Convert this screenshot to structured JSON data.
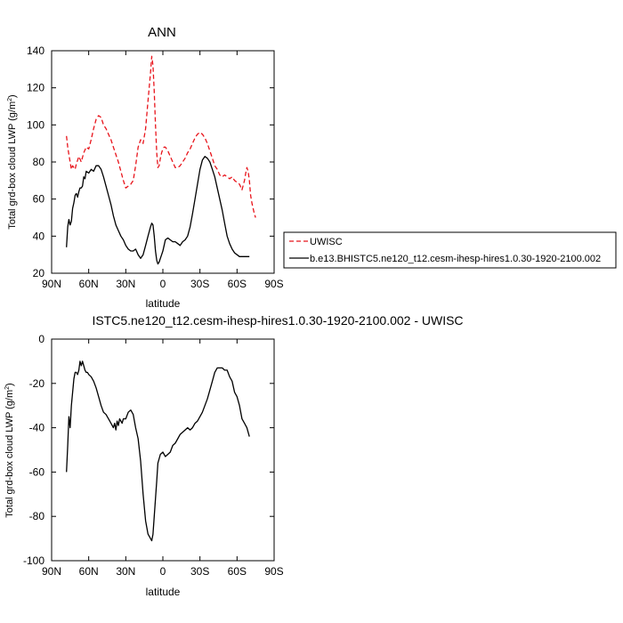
{
  "top_panel": {
    "title": "ANN",
    "ylabel_prefix": "Total grd-box cloud LWP (g/m",
    "ylabel_sup": "2",
    "ylabel_suffix": ")",
    "xlabel": "latitude"
  },
  "bottom_panel": {
    "title": "ISTC5.ne120_t12.cesm-ihesp-hires1.0.30-1920-2100.002 - UWISC",
    "ylabel_prefix": "Total grd-box cloud LWP (g/m",
    "ylabel_sup": "2",
    "ylabel_suffix": ")",
    "xlabel": "latitude"
  },
  "legend": {
    "items": [
      {
        "label": "UWISC",
        "color": "#e8141b",
        "dash": "dashed"
      },
      {
        "label": "b.e13.BHISTC5.ne120_t12.cesm-ihesp-hires1.0.30-1920-2100.002",
        "color": "#000000",
        "dash": "solid"
      }
    ]
  },
  "chart_data": [
    {
      "type": "line",
      "title": "ANN",
      "xlabel": "latitude",
      "ylabel": "Total grd-box cloud LWP (g/m2)",
      "xlim": [
        90,
        -90
      ],
      "ylim": [
        20,
        140
      ],
      "xticks": [
        90,
        60,
        30,
        0,
        -30,
        -60,
        -90
      ],
      "xtick_labels": [
        "90N",
        "60N",
        "30N",
        "0",
        "30S",
        "60S",
        "90S"
      ],
      "yticks": [
        20,
        40,
        60,
        80,
        100,
        120,
        140
      ],
      "series": [
        {
          "name": "UWISC",
          "color": "#e8141b",
          "dash": "dashed",
          "x": [
            78,
            77,
            76,
            75,
            74,
            73,
            72,
            71,
            70,
            68,
            66,
            64,
            62,
            60,
            58,
            56,
            54,
            52,
            50,
            48,
            46,
            44,
            42,
            40,
            38,
            36,
            34,
            32,
            30,
            28,
            26,
            24,
            22,
            20,
            18,
            16,
            14,
            12,
            10,
            9,
            8,
            7,
            6,
            5,
            4,
            3,
            2,
            1,
            0,
            -1,
            -2,
            -4,
            -6,
            -8,
            -10,
            -12,
            -14,
            -16,
            -18,
            -20,
            -22,
            -24,
            -26,
            -28,
            -30,
            -32,
            -34,
            -36,
            -38,
            -40,
            -42,
            -44,
            -46,
            -48,
            -50,
            -52,
            -54,
            -56,
            -58,
            -60,
            -62,
            -64,
            -66,
            -67,
            -68,
            -69,
            -70,
            -71,
            -72,
            -73,
            -74,
            -75
          ],
          "y": [
            94,
            88,
            84,
            80,
            76,
            78,
            77,
            76,
            79,
            83,
            80,
            85,
            88,
            87,
            92,
            98,
            103,
            105,
            104,
            100,
            98,
            95,
            92,
            88,
            84,
            80,
            75,
            70,
            66,
            67,
            68,
            70,
            78,
            88,
            92,
            90,
            98,
            113,
            128,
            137,
            132,
            118,
            100,
            85,
            77,
            78,
            82,
            85,
            87,
            88,
            88,
            86,
            83,
            80,
            77,
            77,
            78,
            80,
            82,
            85,
            87,
            90,
            93,
            95,
            96,
            95,
            93,
            90,
            86,
            82,
            78,
            76,
            73,
            72,
            73,
            72,
            71,
            72,
            70,
            69,
            68,
            65,
            70,
            74,
            77,
            75,
            70,
            62,
            58,
            55,
            52,
            50
          ]
        },
        {
          "name": "b.e13.BHISTC5.ne120_t12.cesm-ihesp-hires1.0.30-1920-2100.002",
          "color": "#000000",
          "dash": "solid",
          "x": [
            78,
            77,
            76,
            75,
            74,
            73,
            72,
            71,
            70,
            69,
            68,
            67,
            66,
            65,
            64,
            63,
            62,
            60,
            58,
            56,
            54,
            52,
            50,
            48,
            46,
            44,
            42,
            40,
            38,
            36,
            34,
            32,
            30,
            28,
            26,
            24,
            22,
            20,
            18,
            16,
            14,
            12,
            10,
            9,
            8,
            7,
            6,
            5,
            4,
            3,
            2,
            1,
            0,
            -1,
            -2,
            -4,
            -6,
            -8,
            -10,
            -12,
            -14,
            -16,
            -18,
            -20,
            -22,
            -24,
            -26,
            -28,
            -30,
            -32,
            -34,
            -36,
            -38,
            -40,
            -42,
            -44,
            -46,
            -48,
            -50,
            -52,
            -54,
            -56,
            -58,
            -60,
            -62,
            -64,
            -66,
            -68,
            -70
          ],
          "y": [
            34,
            45,
            49,
            46,
            48,
            55,
            58,
            62,
            63,
            61,
            64,
            66,
            66,
            67,
            72,
            71,
            75,
            74,
            76,
            75,
            78,
            78,
            76,
            72,
            67,
            62,
            57,
            51,
            46,
            43,
            40,
            38,
            35,
            33,
            32,
            32,
            33,
            30,
            28,
            30,
            35,
            40,
            45,
            47,
            46,
            40,
            32,
            27,
            25,
            26,
            28,
            30,
            32,
            35,
            38,
            39,
            38,
            37,
            37,
            36,
            35,
            37,
            38,
            40,
            45,
            52,
            60,
            68,
            76,
            81,
            83,
            82,
            80,
            76,
            72,
            66,
            60,
            54,
            47,
            40,
            36,
            33,
            31,
            30,
            29,
            29,
            29,
            29,
            29
          ]
        }
      ]
    },
    {
      "type": "line",
      "title": "ISTC5.ne120_t12.cesm-ihesp-hires1.0.30-1920-2100.002 - UWISC",
      "xlabel": "latitude",
      "ylabel": "Total grd-box cloud LWP (g/m2)",
      "xlim": [
        90,
        -90
      ],
      "ylim": [
        -100,
        0
      ],
      "xticks": [
        90,
        60,
        30,
        0,
        -30,
        -60,
        -90
      ],
      "xtick_labels": [
        "90N",
        "60N",
        "30N",
        "0",
        "30S",
        "60S",
        "90S"
      ],
      "yticks": [
        -100,
        -80,
        -60,
        -40,
        -20,
        0
      ],
      "series": [
        {
          "color": "#000000",
          "dash": "solid",
          "x": [
            78,
            77,
            76,
            75,
            74,
            73,
            72,
            71,
            70,
            69,
            68,
            67,
            66,
            65,
            64,
            63,
            62,
            61,
            60,
            58,
            56,
            54,
            52,
            50,
            48,
            46,
            44,
            42,
            40,
            39,
            38,
            37,
            36,
            35,
            34,
            33,
            32,
            30,
            28,
            26,
            24,
            22,
            20,
            18,
            16,
            14,
            12,
            10,
            9,
            8,
            7,
            6,
            5,
            4,
            2,
            0,
            -2,
            -4,
            -6,
            -8,
            -10,
            -12,
            -14,
            -16,
            -18,
            -20,
            -22,
            -24,
            -26,
            -28,
            -30,
            -32,
            -34,
            -36,
            -38,
            -40,
            -42,
            -44,
            -46,
            -48,
            -50,
            -52,
            -54,
            -56,
            -58,
            -60,
            -62,
            -64,
            -66,
            -68,
            -70
          ],
          "y": [
            -60,
            -48,
            -35,
            -40,
            -30,
            -24,
            -18,
            -15,
            -15,
            -16,
            -14,
            -10,
            -12,
            -10,
            -12,
            -14,
            -15,
            -15,
            -16,
            -17,
            -19,
            -22,
            -26,
            -30,
            -33,
            -34,
            -36,
            -38,
            -40,
            -38,
            -41,
            -37,
            -39,
            -36,
            -37,
            -38,
            -36,
            -36,
            -33,
            -32,
            -34,
            -40,
            -45,
            -55,
            -70,
            -82,
            -88,
            -90,
            -91,
            -88,
            -80,
            -72,
            -64,
            -56,
            -52,
            -51,
            -53,
            -52,
            -51,
            -48,
            -47,
            -45,
            -43,
            -42,
            -41,
            -40,
            -41,
            -40,
            -38,
            -37,
            -35,
            -33,
            -30,
            -27,
            -23,
            -19,
            -15,
            -13,
            -13,
            -13,
            -14,
            -14,
            -17,
            -19,
            -24,
            -26,
            -30,
            -36,
            -38,
            -40,
            -44
          ]
        }
      ]
    }
  ]
}
